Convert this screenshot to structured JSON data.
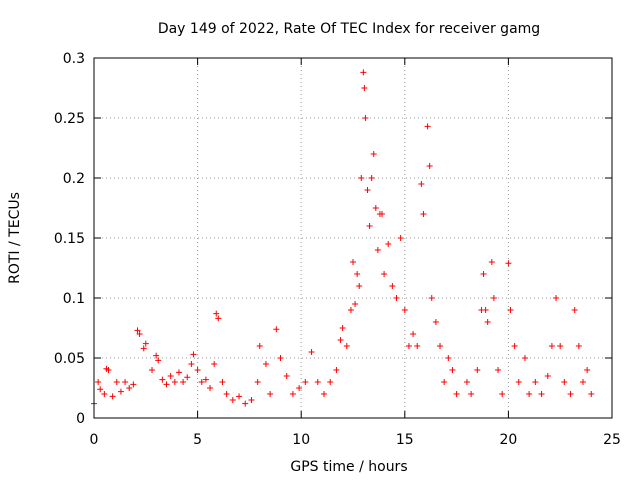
{
  "chart_data": {
    "type": "scatter",
    "title": "Day 149 of 2022, Rate Of TEC Index for receiver gamg",
    "xlabel": "GPS time / hours",
    "ylabel": "ROTI / TECUs",
    "xlim": [
      0,
      25
    ],
    "ylim": [
      0,
      0.3
    ],
    "x_ticks": [
      "0",
      "5",
      "10",
      "15",
      "20",
      "25"
    ],
    "y_ticks": [
      "0",
      "0.05",
      "0.1",
      "0.15",
      "0.2",
      "0.25",
      "0.3"
    ],
    "grid": true,
    "marker": "plus",
    "color": "#ff0000",
    "series": [
      {
        "points": [
          [
            0.0,
            0.012
          ],
          [
            0.2,
            0.03
          ],
          [
            0.3,
            0.024
          ],
          [
            0.5,
            0.02
          ],
          [
            0.6,
            0.041
          ],
          [
            0.7,
            0.04
          ],
          [
            0.9,
            0.018
          ],
          [
            1.1,
            0.03
          ],
          [
            1.3,
            0.022
          ],
          [
            1.5,
            0.03
          ],
          [
            1.7,
            0.025
          ],
          [
            1.9,
            0.028
          ],
          [
            2.1,
            0.073
          ],
          [
            2.2,
            0.07
          ],
          [
            2.4,
            0.058
          ],
          [
            2.5,
            0.062
          ],
          [
            2.8,
            0.04
          ],
          [
            3.0,
            0.052
          ],
          [
            3.1,
            0.048
          ],
          [
            3.3,
            0.032
          ],
          [
            3.5,
            0.028
          ],
          [
            3.7,
            0.035
          ],
          [
            3.9,
            0.03
          ],
          [
            4.1,
            0.038
          ],
          [
            4.3,
            0.03
          ],
          [
            4.5,
            0.034
          ],
          [
            4.7,
            0.045
          ],
          [
            4.8,
            0.053
          ],
          [
            5.0,
            0.04
          ],
          [
            5.2,
            0.03
          ],
          [
            5.4,
            0.032
          ],
          [
            5.6,
            0.025
          ],
          [
            5.8,
            0.045
          ],
          [
            5.9,
            0.087
          ],
          [
            6.0,
            0.083
          ],
          [
            6.2,
            0.03
          ],
          [
            6.4,
            0.02
          ],
          [
            6.7,
            0.015
          ],
          [
            7.0,
            0.018
          ],
          [
            7.3,
            0.012
          ],
          [
            7.6,
            0.015
          ],
          [
            7.9,
            0.03
          ],
          [
            8.0,
            0.06
          ],
          [
            8.3,
            0.045
          ],
          [
            8.5,
            0.02
          ],
          [
            8.8,
            0.074
          ],
          [
            9.0,
            0.05
          ],
          [
            9.3,
            0.035
          ],
          [
            9.6,
            0.02
          ],
          [
            9.9,
            0.025
          ],
          [
            10.2,
            0.03
          ],
          [
            10.5,
            0.055
          ],
          [
            10.8,
            0.03
          ],
          [
            11.1,
            0.02
          ],
          [
            11.4,
            0.03
          ],
          [
            11.7,
            0.04
          ],
          [
            11.9,
            0.065
          ],
          [
            12.0,
            0.075
          ],
          [
            12.2,
            0.06
          ],
          [
            12.4,
            0.09
          ],
          [
            12.5,
            0.13
          ],
          [
            12.6,
            0.095
          ],
          [
            12.7,
            0.12
          ],
          [
            12.8,
            0.11
          ],
          [
            12.9,
            0.2
          ],
          [
            13.0,
            0.288
          ],
          [
            13.05,
            0.275
          ],
          [
            13.1,
            0.25
          ],
          [
            13.2,
            0.19
          ],
          [
            13.3,
            0.16
          ],
          [
            13.4,
            0.2
          ],
          [
            13.5,
            0.22
          ],
          [
            13.6,
            0.175
          ],
          [
            13.7,
            0.14
          ],
          [
            13.8,
            0.17
          ],
          [
            13.9,
            0.17
          ],
          [
            14.0,
            0.12
          ],
          [
            14.2,
            0.145
          ],
          [
            14.4,
            0.11
          ],
          [
            14.6,
            0.1
          ],
          [
            14.8,
            0.15
          ],
          [
            15.0,
            0.09
          ],
          [
            15.2,
            0.06
          ],
          [
            15.4,
            0.07
          ],
          [
            15.6,
            0.06
          ],
          [
            15.8,
            0.195
          ],
          [
            15.9,
            0.17
          ],
          [
            16.1,
            0.243
          ],
          [
            16.2,
            0.21
          ],
          [
            16.3,
            0.1
          ],
          [
            16.5,
            0.08
          ],
          [
            16.7,
            0.06
          ],
          [
            16.9,
            0.03
          ],
          [
            17.1,
            0.05
          ],
          [
            17.3,
            0.04
          ],
          [
            17.5,
            0.02
          ],
          [
            18.0,
            0.03
          ],
          [
            18.2,
            0.02
          ],
          [
            18.5,
            0.04
          ],
          [
            18.7,
            0.09
          ],
          [
            18.8,
            0.12
          ],
          [
            18.9,
            0.09
          ],
          [
            19.0,
            0.08
          ],
          [
            19.2,
            0.13
          ],
          [
            19.3,
            0.1
          ],
          [
            19.5,
            0.04
          ],
          [
            19.7,
            0.02
          ],
          [
            20.0,
            0.129
          ],
          [
            20.1,
            0.09
          ],
          [
            20.3,
            0.06
          ],
          [
            20.5,
            0.03
          ],
          [
            20.8,
            0.05
          ],
          [
            21.0,
            0.02
          ],
          [
            21.3,
            0.03
          ],
          [
            21.6,
            0.02
          ],
          [
            21.9,
            0.035
          ],
          [
            22.1,
            0.06
          ],
          [
            22.3,
            0.1
          ],
          [
            22.5,
            0.06
          ],
          [
            22.7,
            0.03
          ],
          [
            23.0,
            0.02
          ],
          [
            23.2,
            0.09
          ],
          [
            23.4,
            0.06
          ],
          [
            23.6,
            0.03
          ],
          [
            23.8,
            0.04
          ],
          [
            24.0,
            0.02
          ]
        ]
      }
    ]
  }
}
